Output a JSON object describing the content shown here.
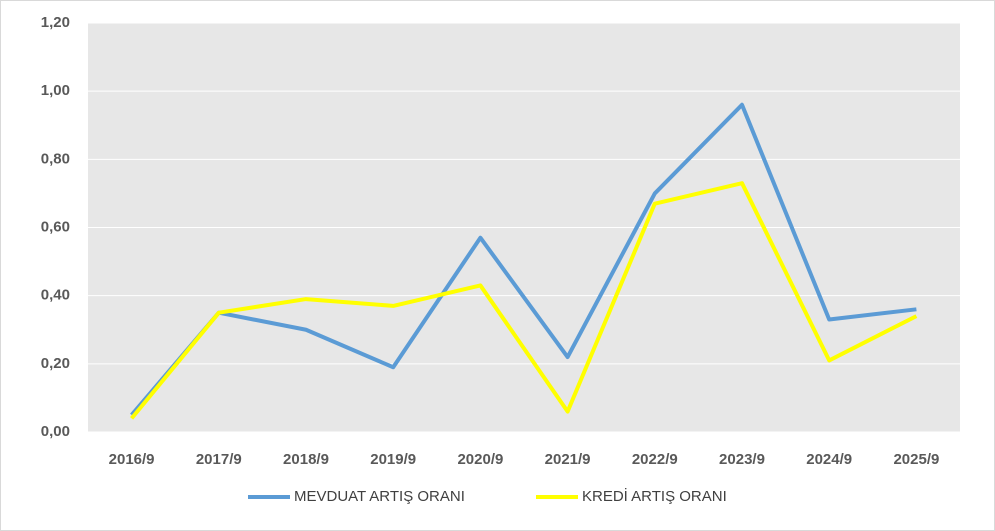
{
  "chart_data": {
    "type": "line",
    "categories": [
      "2016/9",
      "2017/9",
      "2018/9",
      "2019/9",
      "2020/9",
      "2021/9",
      "2022/9",
      "2023/9",
      "2024/9",
      "2025/9"
    ],
    "series": [
      {
        "name": "MEVDUAT ARTIŞ ORANI",
        "color": "#5b9bd5",
        "values": [
          0.05,
          0.35,
          0.3,
          0.19,
          0.57,
          0.22,
          0.7,
          0.96,
          0.33,
          0.36
        ]
      },
      {
        "name": "KREDİ ARTIŞ ORANI",
        "color": "#ffff00",
        "values": [
          0.04,
          0.35,
          0.39,
          0.37,
          0.43,
          0.06,
          0.67,
          0.73,
          0.21,
          0.34
        ]
      }
    ],
    "ylim": [
      0,
      1.2
    ],
    "yticks": [
      {
        "value": 0,
        "label": "0,00"
      },
      {
        "value": 0.2,
        "label": "0,20"
      },
      {
        "value": 0.4,
        "label": "0,40"
      },
      {
        "value": 0.6,
        "label": "0,60"
      },
      {
        "value": 0.8,
        "label": "0,80"
      },
      {
        "value": 1.0,
        "label": "1,00"
      },
      {
        "value": 1.2,
        "label": "1,20"
      }
    ],
    "grid": true,
    "legend": "bottom"
  }
}
